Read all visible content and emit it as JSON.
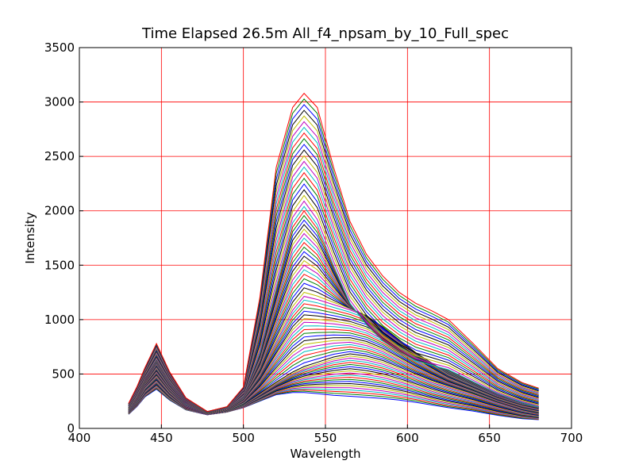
{
  "chart_data": {
    "type": "line",
    "title": "Time Elapsed   26.5m   All_f4_npsam_by_10_Full_spec",
    "xlabel": "Wavelength",
    "ylabel": "Intensity",
    "xlim": [
      400,
      700
    ],
    "ylim": [
      0,
      3500
    ],
    "xticks": [
      400,
      450,
      500,
      550,
      600,
      650,
      700
    ],
    "yticks": [
      0,
      500,
      1000,
      1500,
      2000,
      2500,
      3000,
      3500
    ],
    "grid": true,
    "grid_color": "#ff0000",
    "legend": "none",
    "series_count": 80,
    "series_colors": [
      "#0000ff",
      "#008000",
      "#ff0000",
      "#00bfbf",
      "#bf00bf",
      "#bfbf00",
      "#000000"
    ],
    "x": [
      430,
      435,
      440,
      447,
      455,
      465,
      478,
      490,
      500,
      510,
      520,
      530,
      537,
      545,
      555,
      565,
      575,
      585,
      595,
      605,
      615,
      625,
      640,
      655,
      670,
      680
    ],
    "series_profiles": [
      {
        "name": "",
        "values": [
          130,
          200,
          290,
          360,
          260,
          170,
          125,
          150,
          190,
          250,
          310,
          330,
          330,
          320,
          305,
          295,
          285,
          275,
          260,
          240,
          215,
          190,
          160,
          120,
          90,
          80
        ]
      },
      {
        "name": "",
        "values": [
          150,
          250,
          380,
          490,
          340,
          200,
          135,
          160,
          220,
          320,
          420,
          510,
          560,
          600,
          650,
          680,
          660,
          620,
          560,
          500,
          440,
          390,
          320,
          240,
          170,
          140
        ]
      },
      {
        "name": "",
        "values": [
          170,
          280,
          430,
          600,
          410,
          230,
          140,
          175,
          280,
          500,
          800,
          1100,
          1230,
          1200,
          1150,
          1100,
          1040,
          940,
          820,
          700,
          600,
          500,
          400,
          300,
          230,
          200
        ]
      },
      {
        "name": "",
        "values": [
          180,
          300,
          470,
          640,
          440,
          250,
          150,
          185,
          300,
          700,
          1300,
          1900,
          2050,
          1880,
          1500,
          1150,
          950,
          800,
          700,
          620,
          580,
          540,
          430,
          320,
          240,
          200
        ]
      },
      {
        "name": "",
        "values": [
          230,
          380,
          560,
          780,
          520,
          280,
          155,
          200,
          380,
          1200,
          2400,
          2950,
          3080,
          2950,
          2400,
          1900,
          1600,
          1400,
          1250,
          1150,
          1080,
          1000,
          780,
          550,
          420,
          370
        ]
      }
    ]
  }
}
